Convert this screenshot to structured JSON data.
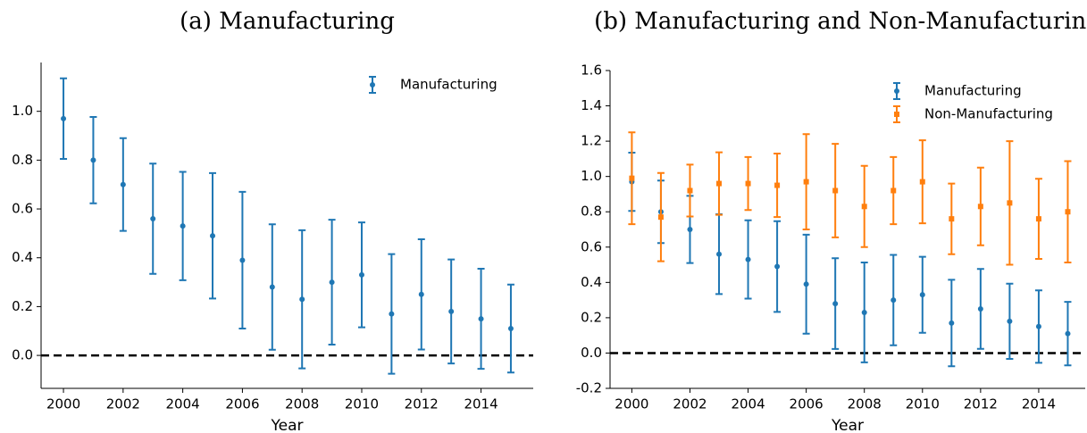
{
  "chart_data": [
    {
      "type": "errorbar",
      "title": "(a) Manufacturing",
      "x_label": "Year",
      "x": [
        2000,
        2001,
        2002,
        2003,
        2004,
        2005,
        2006,
        2007,
        2008,
        2009,
        2010,
        2011,
        2012,
        2013,
        2014,
        2015
      ],
      "series": [
        {
          "name": "Manufacturing",
          "color": "#1f77b4",
          "marker": "circle",
          "values": [
            0.97,
            0.8,
            0.7,
            0.56,
            0.53,
            0.49,
            0.39,
            0.28,
            0.23,
            0.3,
            0.33,
            0.17,
            0.25,
            0.18,
            0.15,
            0.11
          ],
          "errors": [
            0.165,
            0.177,
            0.19,
            0.226,
            0.222,
            0.257,
            0.28,
            0.257,
            0.283,
            0.256,
            0.215,
            0.245,
            0.226,
            0.213,
            0.205,
            0.18
          ]
        }
      ],
      "hline": 0,
      "xlim": [
        1999.25,
        2015.75
      ],
      "xticks": [
        2000,
        2002,
        2004,
        2006,
        2008,
        2010,
        2012,
        2014
      ],
      "ylim": [
        -0.135,
        1.2
      ],
      "yticks": [
        {
          "value": 0,
          "label": "0.0"
        },
        0.2,
        0.4,
        0.6,
        0.8,
        {
          "value": 1,
          "label": "1.0"
        }
      ],
      "legend": "upper right"
    },
    {
      "type": "errorbar",
      "title": "(b) Manufacturing and Non-Manufacturing",
      "x_label": "Year",
      "x": [
        2000,
        2001,
        2002,
        2003,
        2004,
        2005,
        2006,
        2007,
        2008,
        2009,
        2010,
        2011,
        2012,
        2013,
        2014,
        2015
      ],
      "series": [
        {
          "name": "Manufacturing",
          "color": "#1f77b4",
          "marker": "circle",
          "values": [
            0.97,
            0.8,
            0.7,
            0.56,
            0.53,
            0.49,
            0.39,
            0.28,
            0.23,
            0.3,
            0.33,
            0.17,
            0.25,
            0.18,
            0.15,
            0.11
          ],
          "errors": [
            0.165,
            0.177,
            0.19,
            0.226,
            0.222,
            0.257,
            0.28,
            0.257,
            0.283,
            0.256,
            0.215,
            0.245,
            0.226,
            0.213,
            0.205,
            0.18
          ]
        },
        {
          "name": "Non-Manufacturing",
          "color": "#ff7f0e",
          "marker": "square",
          "values": [
            0.99,
            0.77,
            0.92,
            0.96,
            0.96,
            0.95,
            0.97,
            0.92,
            0.83,
            0.92,
            0.97,
            0.76,
            0.83,
            0.85,
            0.76,
            0.8
          ],
          "errors": [
            0.26,
            0.25,
            0.147,
            0.177,
            0.15,
            0.18,
            0.27,
            0.265,
            0.23,
            0.19,
            0.235,
            0.2,
            0.22,
            0.35,
            0.227,
            0.287
          ]
        }
      ],
      "hline": 0,
      "xlim": [
        1999.25,
        2015.6
      ],
      "xticks": [
        2000,
        2002,
        2004,
        2006,
        2008,
        2010,
        2012,
        2014
      ],
      "ylim": [
        -0.2,
        1.6
      ],
      "yticks": [
        -0.2,
        {
          "value": 0,
          "label": "0.0"
        },
        0.2,
        0.4,
        0.6,
        0.8,
        {
          "value": 1,
          "label": "1.0"
        },
        1.2,
        1.4,
        1.6
      ],
      "legend": "upper right"
    }
  ]
}
